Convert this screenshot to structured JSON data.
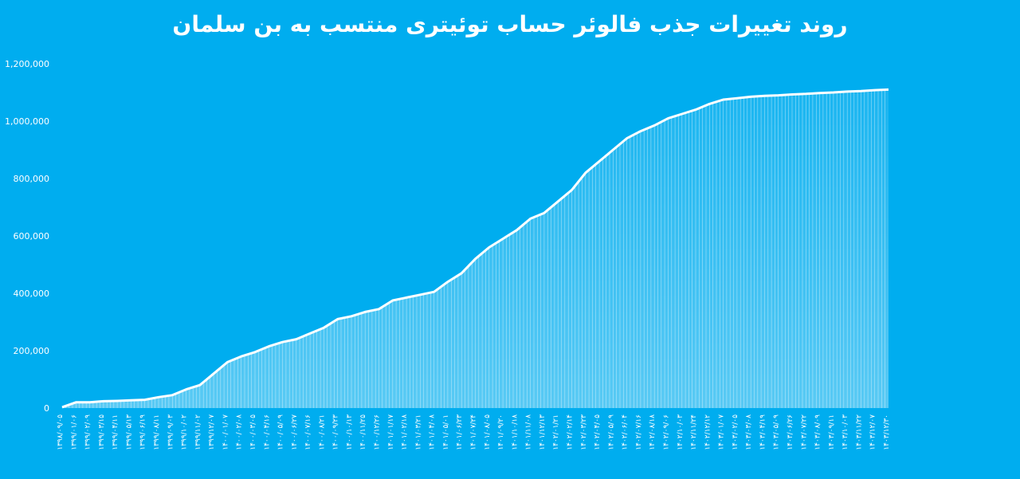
{
  "chart_data": {
    "type": "area",
    "title": "روند تغییرات جذب فالوئر حساب توئیتری منتسب به بن سلمان",
    "xlabel": "",
    "ylabel": "",
    "ylim": [
      0,
      1200000
    ],
    "yticks": [
      "0",
      "200,000",
      "400,000",
      "600,000",
      "800,000",
      "1,000,000",
      "1,200,000"
    ],
    "grid": false,
    "legend": "none",
    "x": [
      "۱۳۹۸/۰۹/۰۵",
      "۱۳۹۹/۰۱/۰۶",
      "۱۳۹۹/۰۲/۰۹",
      "۱۳۹۹/۰۳/۱۵",
      "۱۳۹۹/۰۴/۱۱",
      "۱۳۹۹/۰۵/۱۳",
      "۱۳۹۹/۰۶/۱۹",
      "۱۳۹۹/۰۸/۱۱",
      "۱۳۹۹/۰۹/۰۳",
      "۱۳۹۹/۱۰/۰۲",
      "۱۳۹۹/۱۱/۰۲",
      "۱۳۹۹/۱۲/۰۷",
      "۱۴۰۰/۰۱/۰۷",
      "۱۴۰۰/۰۲/۰۸",
      "۱۴۰۰/۰۳/۰۵",
      "۱۴۰۰/۰۴/۱۶",
      "۱۴۰۰/۰۵/۰۹",
      "۱۴۰۰/۰۶/۲۷",
      "۱۴۰۰/۰۷/۱۶",
      "۱۴۰۰/۰۸/۲۱",
      "۱۴۰۰/۰۹/۲۳",
      "۱۴۰۰/۱۰/۱۳",
      "۱۴۰۰/۱۱/۲۵",
      "۱۴۰۰/۱۲/۲۶",
      "۱۴۰۱/۰۱/۱۷",
      "۱۴۰۱/۰۲/۱۸",
      "۱۴۰۱/۰۳/۲۱",
      "۱۴۰۱/۰۴/۰۸",
      "۱۴۰۱/۰۵/۰۱",
      "۱۴۰۱/۰۶/۲۳",
      "۱۴۰۱/۰۷/۲۴",
      "۱۴۰۱/۰۸/۰۵",
      "۱۴۰۱/۰۹/۲۰",
      "۱۴۰۱/۱۰/۱۸",
      "۱۴۰۱/۱۱/۰۸",
      "۱۴۰۱/۱۲/۱۳",
      "۱۴۰۲/۰۱/۲۱",
      "۱۴۰۲/۰۲/۱۴",
      "۱۴۰۲/۰۳/۲۳",
      "۱۴۰۲/۰۴/۰۵",
      "۱۴۰۲/۰۵/۰۹",
      "۱۴۰۲/۰۶/۰۴",
      "۱۴۰۲/۰۷/۱۶",
      "۱۴۰۲/۰۸/۱۸",
      "۱۴۰۲/۰۹/۰۶",
      "۱۴۰۲/۱۰/۰۳",
      "۱۴۰۲/۱۱/۲۴",
      "۱۴۰۲/۱۲/۱۲",
      "۱۴۰۳/۰۱/۰۷",
      "۱۴۰۳/۰۲/۰۵",
      "۱۴۰۳/۰۳/۰۸",
      "۱۴۰۳/۰۴/۱۹",
      "۱۴۰۳/۰۵/۰۹",
      "۱۴۰۳/۰۶/۲۶",
      "۱۴۰۳/۰۷/۲۲",
      "۱۴۰۳/۰۸/۰۹",
      "۱۴۰۳/۰۹/۱۱",
      "۱۴۰۳/۱۰/۰۳",
      "۱۴۰۳/۱۱/۲۲",
      "۱۴۰۳/۱۲/۰۷",
      "۱۴۰۳/۱۲/۳۰"
    ],
    "series": [
      {
        "values": [
          3000,
          20000,
          20000,
          24000,
          25000,
          27000,
          29000,
          38000,
          45000,
          65000,
          80000,
          120000,
          160000,
          180000,
          195000,
          215000,
          230000,
          240000,
          260000,
          280000,
          310000,
          320000,
          335000,
          345000,
          375000,
          385000,
          395000,
          405000,
          440000,
          470000,
          520000,
          560000,
          590000,
          620000,
          660000,
          680000,
          720000,
          760000,
          820000,
          860000,
          900000,
          940000,
          965000,
          985000,
          1010000,
          1025000,
          1040000,
          1060000,
          1075000,
          1080000,
          1085000,
          1088000,
          1090000,
          1093000,
          1095000,
          1098000,
          1100000,
          1103000,
          1105000,
          1108000,
          1110000
        ]
      }
    ],
    "colors": {
      "background": "#00adef",
      "line": "#ffffff"
    }
  }
}
